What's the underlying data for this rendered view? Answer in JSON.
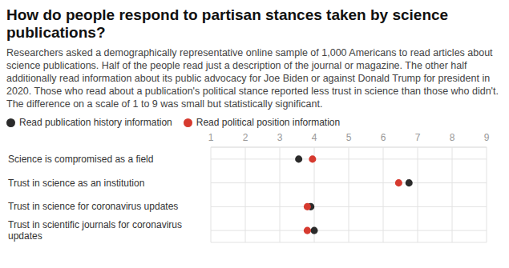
{
  "chart_data": {
    "type": "scatter",
    "title": "How do people respond to partisan stances taken by science publications?",
    "subtitle": "Researchers asked a demographically representative online sample of 1,000 Americans to read articles about science publications. Half of the people read just a description of the journal or magazine. The other half additionally read information about its public advocacy for Joe Biden or against Donald Trump for president in 2020. Those who read about a publication's political stance reported less trust in science than those who didn't. The difference on a scale of 1 to 9 was small but statistically significant.",
    "categories": [
      "Science is compromised as a field",
      "Trust in science as an institution",
      "Trust in science for coronavirus updates",
      "Trust in scientific journals for coronavirus updates"
    ],
    "series": [
      {
        "name": "Read publication history information",
        "color": "#2b2b2b",
        "values": [
          3.55,
          6.75,
          3.9,
          4.0
        ]
      },
      {
        "name": "Read political position information",
        "color": "#d63a2f",
        "values": [
          3.95,
          6.45,
          3.8,
          3.8
        ]
      }
    ],
    "xlim": [
      1,
      9
    ],
    "xticks": [
      1,
      2,
      3,
      4,
      5,
      6,
      7,
      8,
      9
    ],
    "grid": true
  }
}
